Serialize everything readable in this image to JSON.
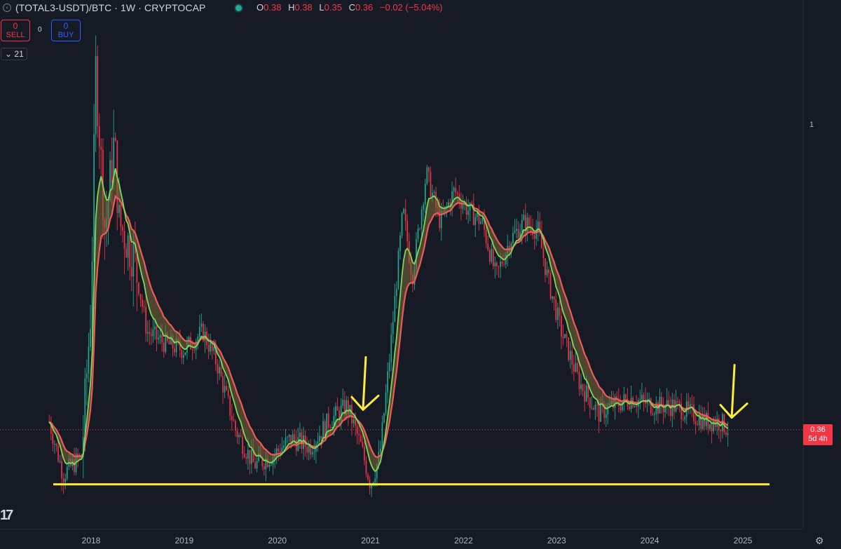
{
  "header": {
    "symbol": "(TOTAL3-USDT)/BTC · 1W · CRYPTOCAP",
    "ohlc": {
      "o_label": "O",
      "o": "0.38",
      "h_label": "H",
      "h": "0.38",
      "l_label": "L",
      "l": "0.35",
      "c_label": "C",
      "c": "0.36",
      "change": "−0.02 (−5.04%)"
    }
  },
  "trade": {
    "sell_count": "0",
    "sell_label": "SELL",
    "spread": "0",
    "buy_count": "0",
    "buy_label": "BUY"
  },
  "indicator_toggle": "21",
  "price_axis": {
    "tick_label": "1",
    "last_price": "0.36",
    "countdown": "5d 4h"
  },
  "colors": {
    "background": "#161a25",
    "up": "#22ab94",
    "down": "#f23645",
    "annotation": "#ffeb3b",
    "ema_fast": "#7ed957",
    "ema_slow": "#f15a5a"
  },
  "icons": {
    "settings": "gear-icon",
    "logo": "tradingview-logo"
  },
  "chart_data": {
    "type": "line",
    "title": "(TOTAL3-USDT)/BTC · 1W · CRYPTOCAP",
    "x_tick_labels": [
      "2018",
      "2019",
      "2020",
      "2021",
      "2022",
      "2023",
      "2024",
      "2025"
    ],
    "y_scale": "log",
    "y_tick_labels": [
      "1"
    ],
    "ylim": [
      0.27,
      1.9
    ],
    "series": [
      {
        "name": "",
        "values": [
          [
            2017.55,
            0.37
          ],
          [
            2017.7,
            0.31
          ],
          [
            2017.9,
            0.33
          ],
          [
            2018.0,
            0.55
          ],
          [
            2018.05,
            1.2
          ],
          [
            2018.15,
            0.7
          ],
          [
            2018.25,
            0.95
          ],
          [
            2018.3,
            0.72
          ],
          [
            2018.45,
            0.65
          ],
          [
            2018.6,
            0.5
          ],
          [
            2018.8,
            0.48
          ],
          [
            2019.0,
            0.47
          ],
          [
            2019.2,
            0.5
          ],
          [
            2019.35,
            0.45
          ],
          [
            2019.55,
            0.36
          ],
          [
            2019.75,
            0.32
          ],
          [
            2019.95,
            0.33
          ],
          [
            2020.15,
            0.35
          ],
          [
            2020.35,
            0.34
          ],
          [
            2020.55,
            0.37
          ],
          [
            2020.75,
            0.39
          ],
          [
            2020.9,
            0.34
          ],
          [
            2021.0,
            0.3
          ],
          [
            2021.1,
            0.33
          ],
          [
            2021.2,
            0.45
          ],
          [
            2021.35,
            0.75
          ],
          [
            2021.45,
            0.6
          ],
          [
            2021.6,
            0.85
          ],
          [
            2021.75,
            0.72
          ],
          [
            2021.9,
            0.8
          ],
          [
            2022.05,
            0.75
          ],
          [
            2022.2,
            0.72
          ],
          [
            2022.35,
            0.6
          ],
          [
            2022.5,
            0.68
          ],
          [
            2022.65,
            0.72
          ],
          [
            2022.8,
            0.7
          ],
          [
            2022.9,
            0.6
          ],
          [
            2023.05,
            0.5
          ],
          [
            2023.25,
            0.42
          ],
          [
            2023.45,
            0.38
          ],
          [
            2023.6,
            0.39
          ],
          [
            2023.8,
            0.4
          ],
          [
            2024.05,
            0.39
          ],
          [
            2024.25,
            0.39
          ],
          [
            2024.45,
            0.38
          ],
          [
            2024.6,
            0.37
          ],
          [
            2024.75,
            0.37
          ],
          [
            2024.85,
            0.36
          ]
        ]
      }
    ],
    "annotations": [
      {
        "type": "horizontal_line",
        "y": 0.3
      },
      {
        "type": "arrow_down",
        "x": 2020.92,
        "y": 0.385
      },
      {
        "type": "arrow_down",
        "x": 2024.88,
        "y": 0.375
      }
    ]
  }
}
